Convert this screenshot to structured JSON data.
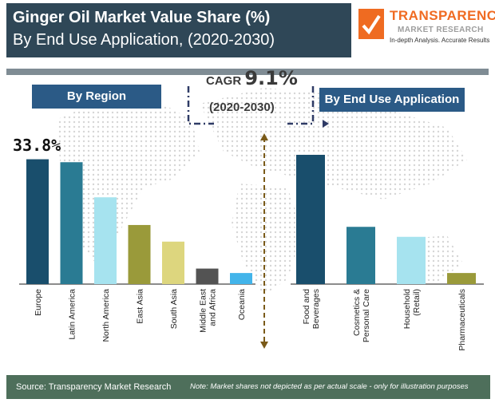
{
  "header": {
    "title_line1": "Ginger Oil Market Value Share (%)",
    "title_line2": "By End Use Application, (2020-2030)"
  },
  "logo": {
    "name": "TRANSPARENCY",
    "sub": "MARKET RESEARCH",
    "tagline": "In-depth Analysis. Accurate Results"
  },
  "cagr": {
    "label": "CAGR",
    "value": "9.1%",
    "period": "(2020-2030)"
  },
  "footer": {
    "source": "Source: Transparency Market Research",
    "note": "Note: Market shares not depicted as per actual scale - only for illustration purposes"
  },
  "chart_data": [
    {
      "type": "bar",
      "title": "By Region",
      "categories": [
        "Europe",
        "Latin America",
        "North America",
        "East Asia",
        "South Asia",
        "Middle East and Africa",
        "Oceania"
      ],
      "values": [
        33.8,
        33.0,
        23.5,
        16.0,
        11.5,
        4.2,
        3.0
      ],
      "colors": [
        "#194e6c",
        "#2a7b93",
        "#a6e3ef",
        "#9a9a3a",
        "#ddd67e",
        "#535353",
        "#42b4ea"
      ],
      "data_labels": [
        {
          "category": "Europe",
          "text": "33.8%"
        }
      ],
      "ylim": [
        0,
        35
      ]
    },
    {
      "type": "bar",
      "title": "By End Use Application",
      "categories": [
        "Food and Beverages",
        "Cosmetics & Personal Care",
        "Household (Retail)",
        "Pharmaceuticals"
      ],
      "values": [
        35.0,
        15.5,
        12.8,
        3.0
      ],
      "colors": [
        "#194e6c",
        "#2a7b93",
        "#a6e3ef",
        "#9a9a3a"
      ],
      "ylim": [
        0,
        35
      ]
    }
  ]
}
